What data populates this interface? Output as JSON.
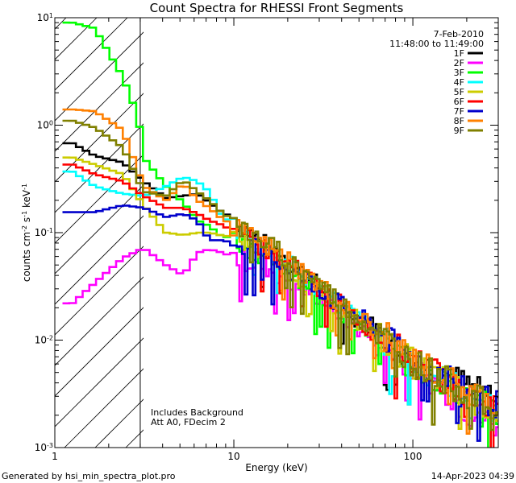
{
  "chart_data": {
    "type": "line",
    "title": "Count Spectra for RHESSI Front Segments",
    "xlabel": "Energy (keV)",
    "ylabel_parts": {
      "base": "counts cm",
      "exp1": "-2",
      "mid": " s",
      "exp2": "-1",
      "unit": " keV",
      "exp3": "-1"
    },
    "x_scale": "log",
    "y_scale": "log",
    "xlim": [
      1,
      300
    ],
    "ylim": [
      0.001,
      10
    ],
    "x_ticks": [
      {
        "value": 1,
        "label": "1"
      },
      {
        "value": 10,
        "label": "10"
      },
      {
        "value": 100,
        "label": "100"
      }
    ],
    "y_ticks": [
      {
        "value": 0.001,
        "base": "10",
        "exp": "-3"
      },
      {
        "value": 0.01,
        "base": "10",
        "exp": "-2"
      },
      {
        "value": 0.1,
        "base": "10",
        "exp": "-1"
      },
      {
        "value": 1,
        "base": "10",
        "exp": "0"
      },
      {
        "value": 10,
        "base": "10",
        "exp": "1"
      }
    ],
    "date": "7-Feb-2010",
    "time_range": "11:48:00 to 11:49:00",
    "attenuator_cutoff_keV": 3,
    "annotations": [
      "Includes Background",
      "Att A0, FDecim 2"
    ],
    "series": [
      {
        "name": "1F",
        "color": "#000000",
        "points": [
          [
            1.2,
            0.68
          ],
          [
            1.6,
            0.52
          ],
          [
            2.3,
            0.45
          ],
          [
            3,
            0.3
          ],
          [
            4,
            0.21
          ],
          [
            5,
            0.22
          ],
          [
            6,
            0.23
          ],
          [
            7,
            0.19
          ],
          [
            8,
            0.16
          ],
          [
            10,
            0.13
          ],
          [
            15,
            0.075
          ],
          [
            20,
            0.055
          ],
          [
            30,
            0.03
          ],
          [
            40,
            0.02
          ],
          [
            60,
            0.013
          ],
          [
            80,
            0.0085
          ],
          [
            100,
            0.0065
          ],
          [
            150,
            0.0048
          ],
          [
            200,
            0.0038
          ],
          [
            300,
            0.0026
          ]
        ]
      },
      {
        "name": "2F",
        "color": "#ff00ff",
        "points": [
          [
            1.2,
            0.022
          ],
          [
            1.6,
            0.034
          ],
          [
            2.3,
            0.058
          ],
          [
            3,
            0.072
          ],
          [
            4,
            0.05
          ],
          [
            5,
            0.04
          ],
          [
            6,
            0.065
          ],
          [
            7,
            0.07
          ],
          [
            8,
            0.066
          ],
          [
            10,
            0.058
          ],
          [
            15,
            0.048
          ],
          [
            20,
            0.036
          ],
          [
            30,
            0.025
          ],
          [
            40,
            0.017
          ],
          [
            60,
            0.01
          ],
          [
            80,
            0.0075
          ],
          [
            100,
            0.0055
          ],
          [
            150,
            0.0035
          ],
          [
            200,
            0.0021
          ],
          [
            300,
            0.0016
          ]
        ]
      },
      {
        "name": "3F",
        "color": "#00ff00",
        "points": [
          [
            1.2,
            9.0
          ],
          [
            1.6,
            8.0
          ],
          [
            2.3,
            2.8
          ],
          [
            2.8,
            1.2
          ],
          [
            3,
            0.5
          ],
          [
            4,
            0.27
          ],
          [
            5,
            0.19
          ],
          [
            6,
            0.13
          ],
          [
            7,
            0.115
          ],
          [
            8,
            0.095
          ],
          [
            10,
            0.085
          ],
          [
            15,
            0.06
          ],
          [
            20,
            0.045
          ],
          [
            30,
            0.028
          ],
          [
            40,
            0.018
          ],
          [
            60,
            0.011
          ],
          [
            80,
            0.0075
          ],
          [
            100,
            0.0055
          ],
          [
            150,
            0.004
          ],
          [
            200,
            0.003
          ],
          [
            300,
            0.0021
          ]
        ]
      },
      {
        "name": "4F",
        "color": "#00ffff",
        "points": [
          [
            1.2,
            0.37
          ],
          [
            1.6,
            0.27
          ],
          [
            2.3,
            0.23
          ],
          [
            3,
            0.22
          ],
          [
            4,
            0.27
          ],
          [
            5,
            0.33
          ],
          [
            6,
            0.3
          ],
          [
            7,
            0.24
          ],
          [
            8,
            0.15
          ],
          [
            10,
            0.11
          ],
          [
            15,
            0.07
          ],
          [
            20,
            0.05
          ],
          [
            30,
            0.03
          ],
          [
            40,
            0.02
          ],
          [
            60,
            0.012
          ],
          [
            80,
            0.008
          ],
          [
            100,
            0.006
          ],
          [
            150,
            0.0042
          ],
          [
            200,
            0.0032
          ],
          [
            300,
            0.0022
          ]
        ]
      },
      {
        "name": "5F",
        "color": "#cccc00",
        "points": [
          [
            1.2,
            0.5
          ],
          [
            1.6,
            0.43
          ],
          [
            2.3,
            0.35
          ],
          [
            3,
            0.18
          ],
          [
            4,
            0.1
          ],
          [
            5,
            0.095
          ],
          [
            6,
            0.1
          ],
          [
            7,
            0.1
          ],
          [
            8,
            0.095
          ],
          [
            10,
            0.09
          ],
          [
            15,
            0.065
          ],
          [
            20,
            0.045
          ],
          [
            30,
            0.028
          ],
          [
            40,
            0.019
          ],
          [
            60,
            0.012
          ],
          [
            80,
            0.008
          ],
          [
            100,
            0.006
          ],
          [
            150,
            0.0042
          ],
          [
            200,
            0.003
          ],
          [
            300,
            0.0021
          ]
        ]
      },
      {
        "name": "6F",
        "color": "#ff0000",
        "points": [
          [
            1.2,
            0.43
          ],
          [
            1.6,
            0.35
          ],
          [
            2.3,
            0.3
          ],
          [
            3,
            0.22
          ],
          [
            4,
            0.17
          ],
          [
            5,
            0.17
          ],
          [
            6,
            0.15
          ],
          [
            7,
            0.13
          ],
          [
            8,
            0.12
          ],
          [
            10,
            0.1
          ],
          [
            15,
            0.07
          ],
          [
            20,
            0.05
          ],
          [
            30,
            0.03
          ],
          [
            40,
            0.02
          ],
          [
            60,
            0.012
          ],
          [
            80,
            0.0085
          ],
          [
            100,
            0.0062
          ],
          [
            150,
            0.0043
          ],
          [
            200,
            0.0032
          ],
          [
            300,
            0.0023
          ]
        ]
      },
      {
        "name": "7F",
        "color": "#0000cc",
        "points": [
          [
            1.2,
            0.155
          ],
          [
            1.6,
            0.155
          ],
          [
            2.3,
            0.18
          ],
          [
            3,
            0.17
          ],
          [
            4,
            0.14
          ],
          [
            5,
            0.15
          ],
          [
            6,
            0.13
          ],
          [
            7,
            0.085
          ],
          [
            8,
            0.085
          ],
          [
            10,
            0.08
          ],
          [
            15,
            0.065
          ],
          [
            20,
            0.045
          ],
          [
            30,
            0.03
          ],
          [
            40,
            0.02
          ],
          [
            60,
            0.013
          ],
          [
            80,
            0.0085
          ],
          [
            100,
            0.0065
          ],
          [
            150,
            0.0048
          ],
          [
            200,
            0.0035
          ],
          [
            300,
            0.0024
          ]
        ]
      },
      {
        "name": "8F",
        "color": "#ff8000",
        "points": [
          [
            1.2,
            1.4
          ],
          [
            1.6,
            1.35
          ],
          [
            2.3,
            0.9
          ],
          [
            3,
            0.27
          ],
          [
            4,
            0.2
          ],
          [
            5,
            0.29
          ],
          [
            6,
            0.2
          ],
          [
            7,
            0.17
          ],
          [
            8,
            0.14
          ],
          [
            10,
            0.11
          ],
          [
            15,
            0.075
          ],
          [
            20,
            0.055
          ],
          [
            30,
            0.032
          ],
          [
            40,
            0.021
          ],
          [
            60,
            0.013
          ],
          [
            80,
            0.009
          ],
          [
            100,
            0.0065
          ],
          [
            150,
            0.0045
          ],
          [
            200,
            0.0034
          ],
          [
            300,
            0.0024
          ]
        ]
      },
      {
        "name": "9F",
        "color": "#808000",
        "points": [
          [
            1.2,
            1.1
          ],
          [
            1.6,
            0.95
          ],
          [
            2.3,
            0.62
          ],
          [
            3,
            0.24
          ],
          [
            4,
            0.22
          ],
          [
            5,
            0.31
          ],
          [
            6,
            0.24
          ],
          [
            7,
            0.2
          ],
          [
            8,
            0.16
          ],
          [
            10,
            0.12
          ],
          [
            15,
            0.08
          ],
          [
            20,
            0.056
          ],
          [
            30,
            0.033
          ],
          [
            40,
            0.021
          ],
          [
            60,
            0.0125
          ],
          [
            80,
            0.0085
          ],
          [
            100,
            0.0062
          ],
          [
            150,
            0.0042
          ],
          [
            200,
            0.0031
          ],
          [
            300,
            0.0022
          ]
        ]
      }
    ]
  },
  "footer": {
    "generator": "Generated by hsi_min_spectra_plot.pro",
    "timestamp": "14-Apr-2023 04:39"
  }
}
